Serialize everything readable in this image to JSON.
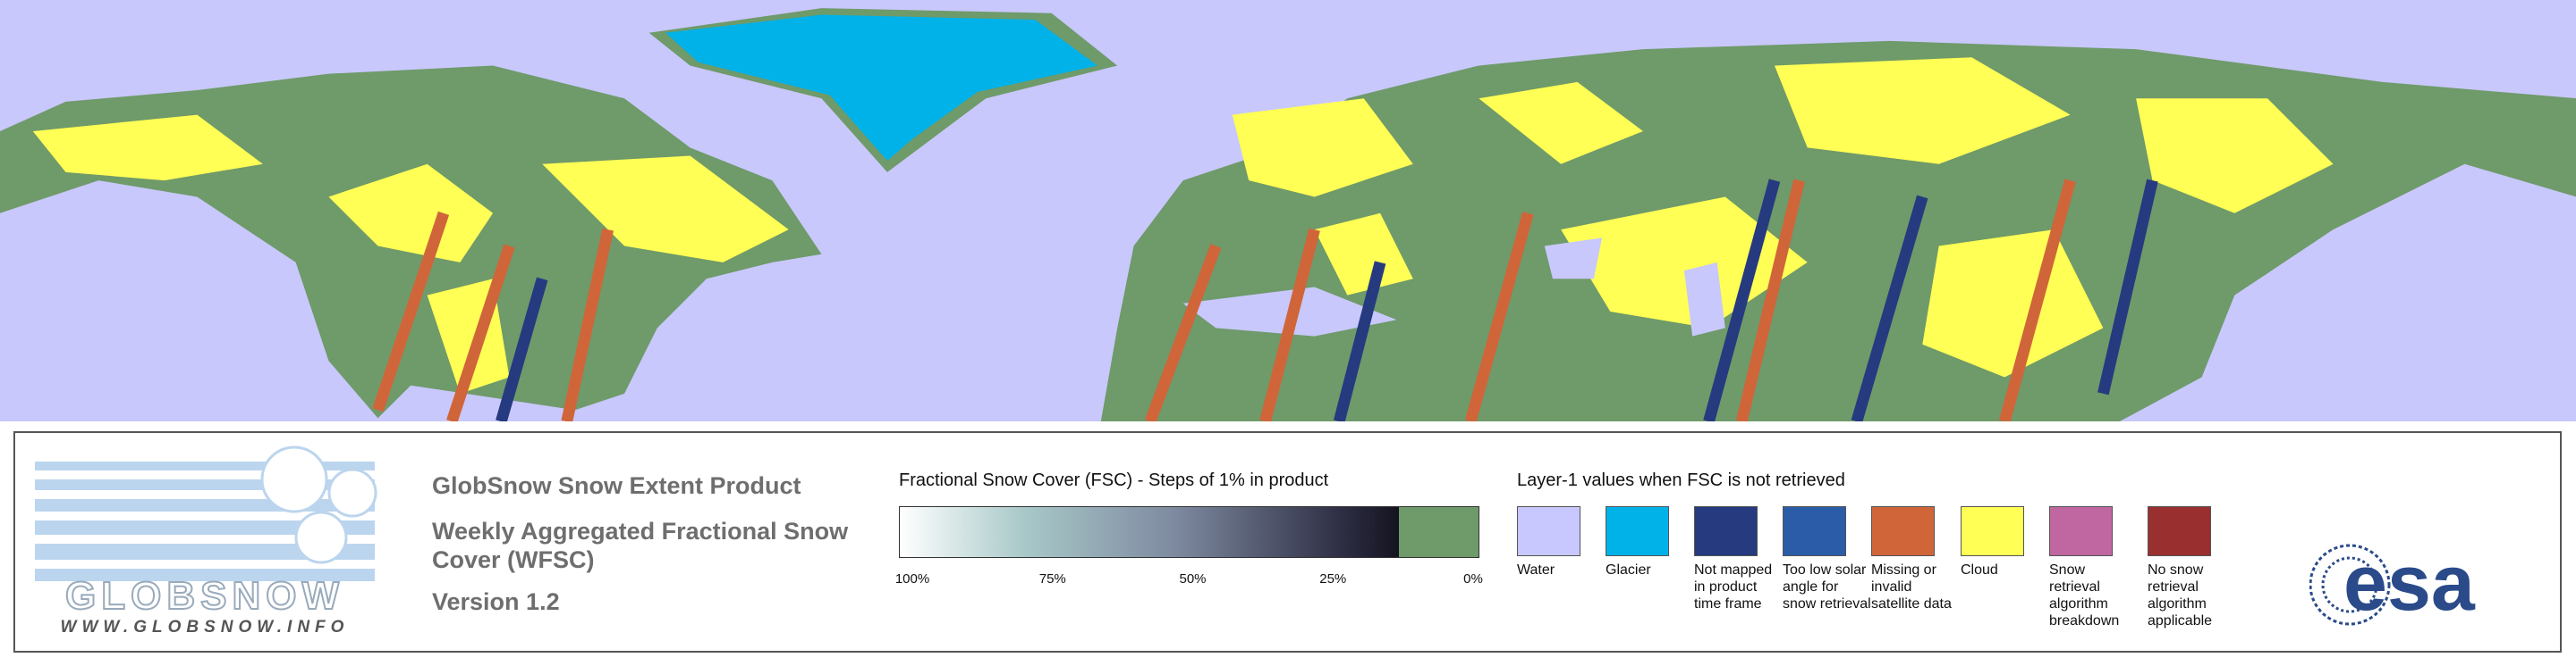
{
  "logo": {
    "name": "GLOBSNOW",
    "url": "WWW.GLOBSNOW.INFO"
  },
  "product": {
    "title": "GlobSnow Snow Extent Product",
    "subtitle": "Weekly Aggregated Fractional Snow Cover (WFSC)",
    "version": "Version 1.2"
  },
  "fsc_scale": {
    "title": "Fractional Snow Cover (FSC) - Steps of 1% in product",
    "ticks": [
      {
        "value": 100,
        "label": "100%"
      },
      {
        "value": 75,
        "label": "75%"
      },
      {
        "value": 50,
        "label": "50%"
      },
      {
        "value": 25,
        "label": "25%"
      },
      {
        "value": 0,
        "label": "0%"
      }
    ]
  },
  "layer1": {
    "title": "Layer-1 values when FSC is not retrieved",
    "classes": [
      {
        "label": "Water",
        "color": "#c8c8ff"
      },
      {
        "label": "Glacier",
        "color": "#00b2e8"
      },
      {
        "label": "Not mapped in product time frame",
        "color": "#263a80"
      },
      {
        "label": "Too low solar angle for snow retrieval",
        "color": "#2a5ca8"
      },
      {
        "label": "Missing or invalid satellite data",
        "color": "#d0653a"
      },
      {
        "label": "Cloud",
        "color": "#ffff55"
      },
      {
        "label": "Snow retrieval algorithm breakdown",
        "color": "#c066a0"
      },
      {
        "label": "No snow retrieval algorithm applicable",
        "color": "#9a2f30"
      }
    ]
  },
  "esa_logo": "esa"
}
